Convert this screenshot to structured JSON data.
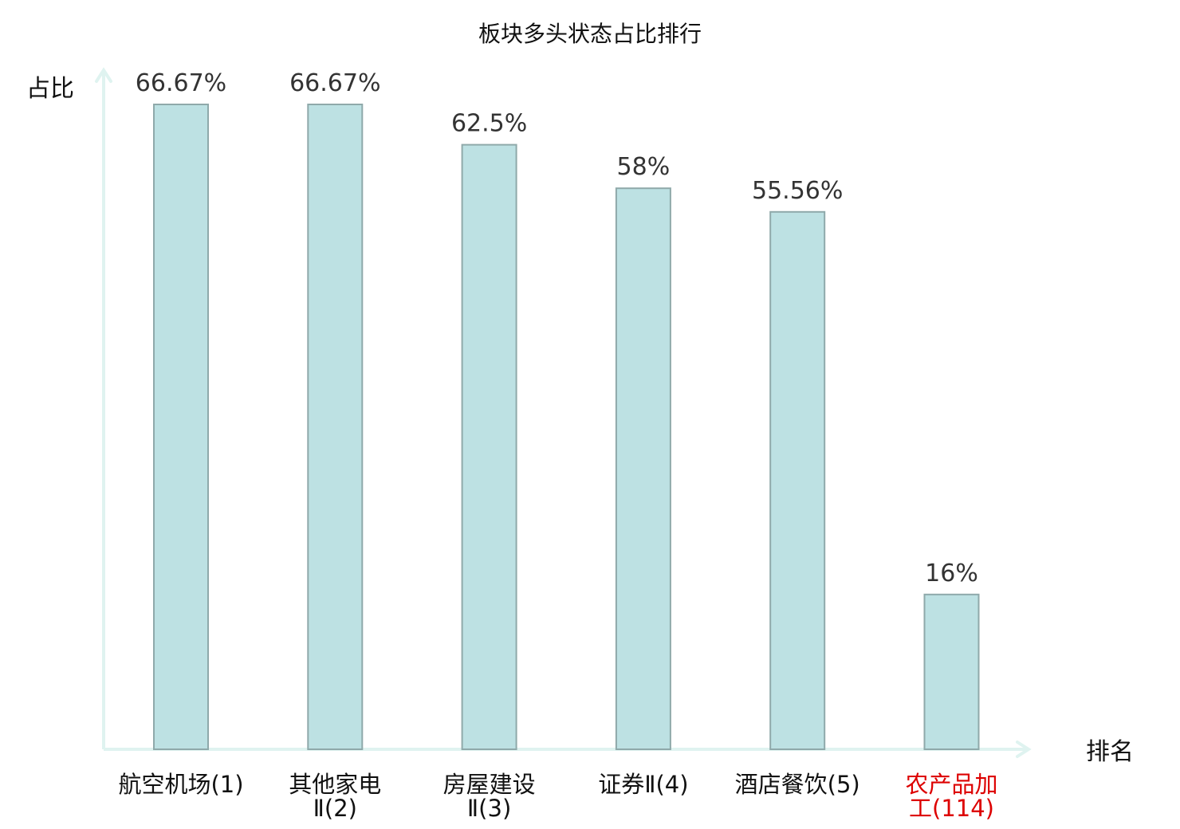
{
  "chart_data": {
    "type": "bar",
    "title": "板块多头状态占比排行",
    "xlabel": "排名",
    "ylabel": "占比",
    "categories": [
      [
        "航空机场(1)"
      ],
      [
        "其他家电",
        "Ⅱ(2)"
      ],
      [
        "房屋建设",
        "Ⅱ(3)"
      ],
      [
        "证券Ⅱ(4)"
      ],
      [
        "酒店餐饮(5)"
      ],
      [
        "农产品加",
        "工(114)"
      ]
    ],
    "values": [
      66.67,
      66.67,
      62.5,
      58,
      55.56,
      16
    ],
    "value_labels": [
      "66.67%",
      "66.67%",
      "62.5%",
      "58%",
      "55.56%",
      "16%"
    ],
    "highlight_index": 5,
    "ylim": [
      0,
      66.67
    ],
    "grid": false,
    "legend": "none",
    "colors": {
      "bar_fill": "#bde1e3",
      "bar_stroke": "#8fa9aa",
      "axis": "#dff3f0",
      "highlight_text": "#dd0000",
      "text": "#111111",
      "value_text": "#333333"
    }
  }
}
